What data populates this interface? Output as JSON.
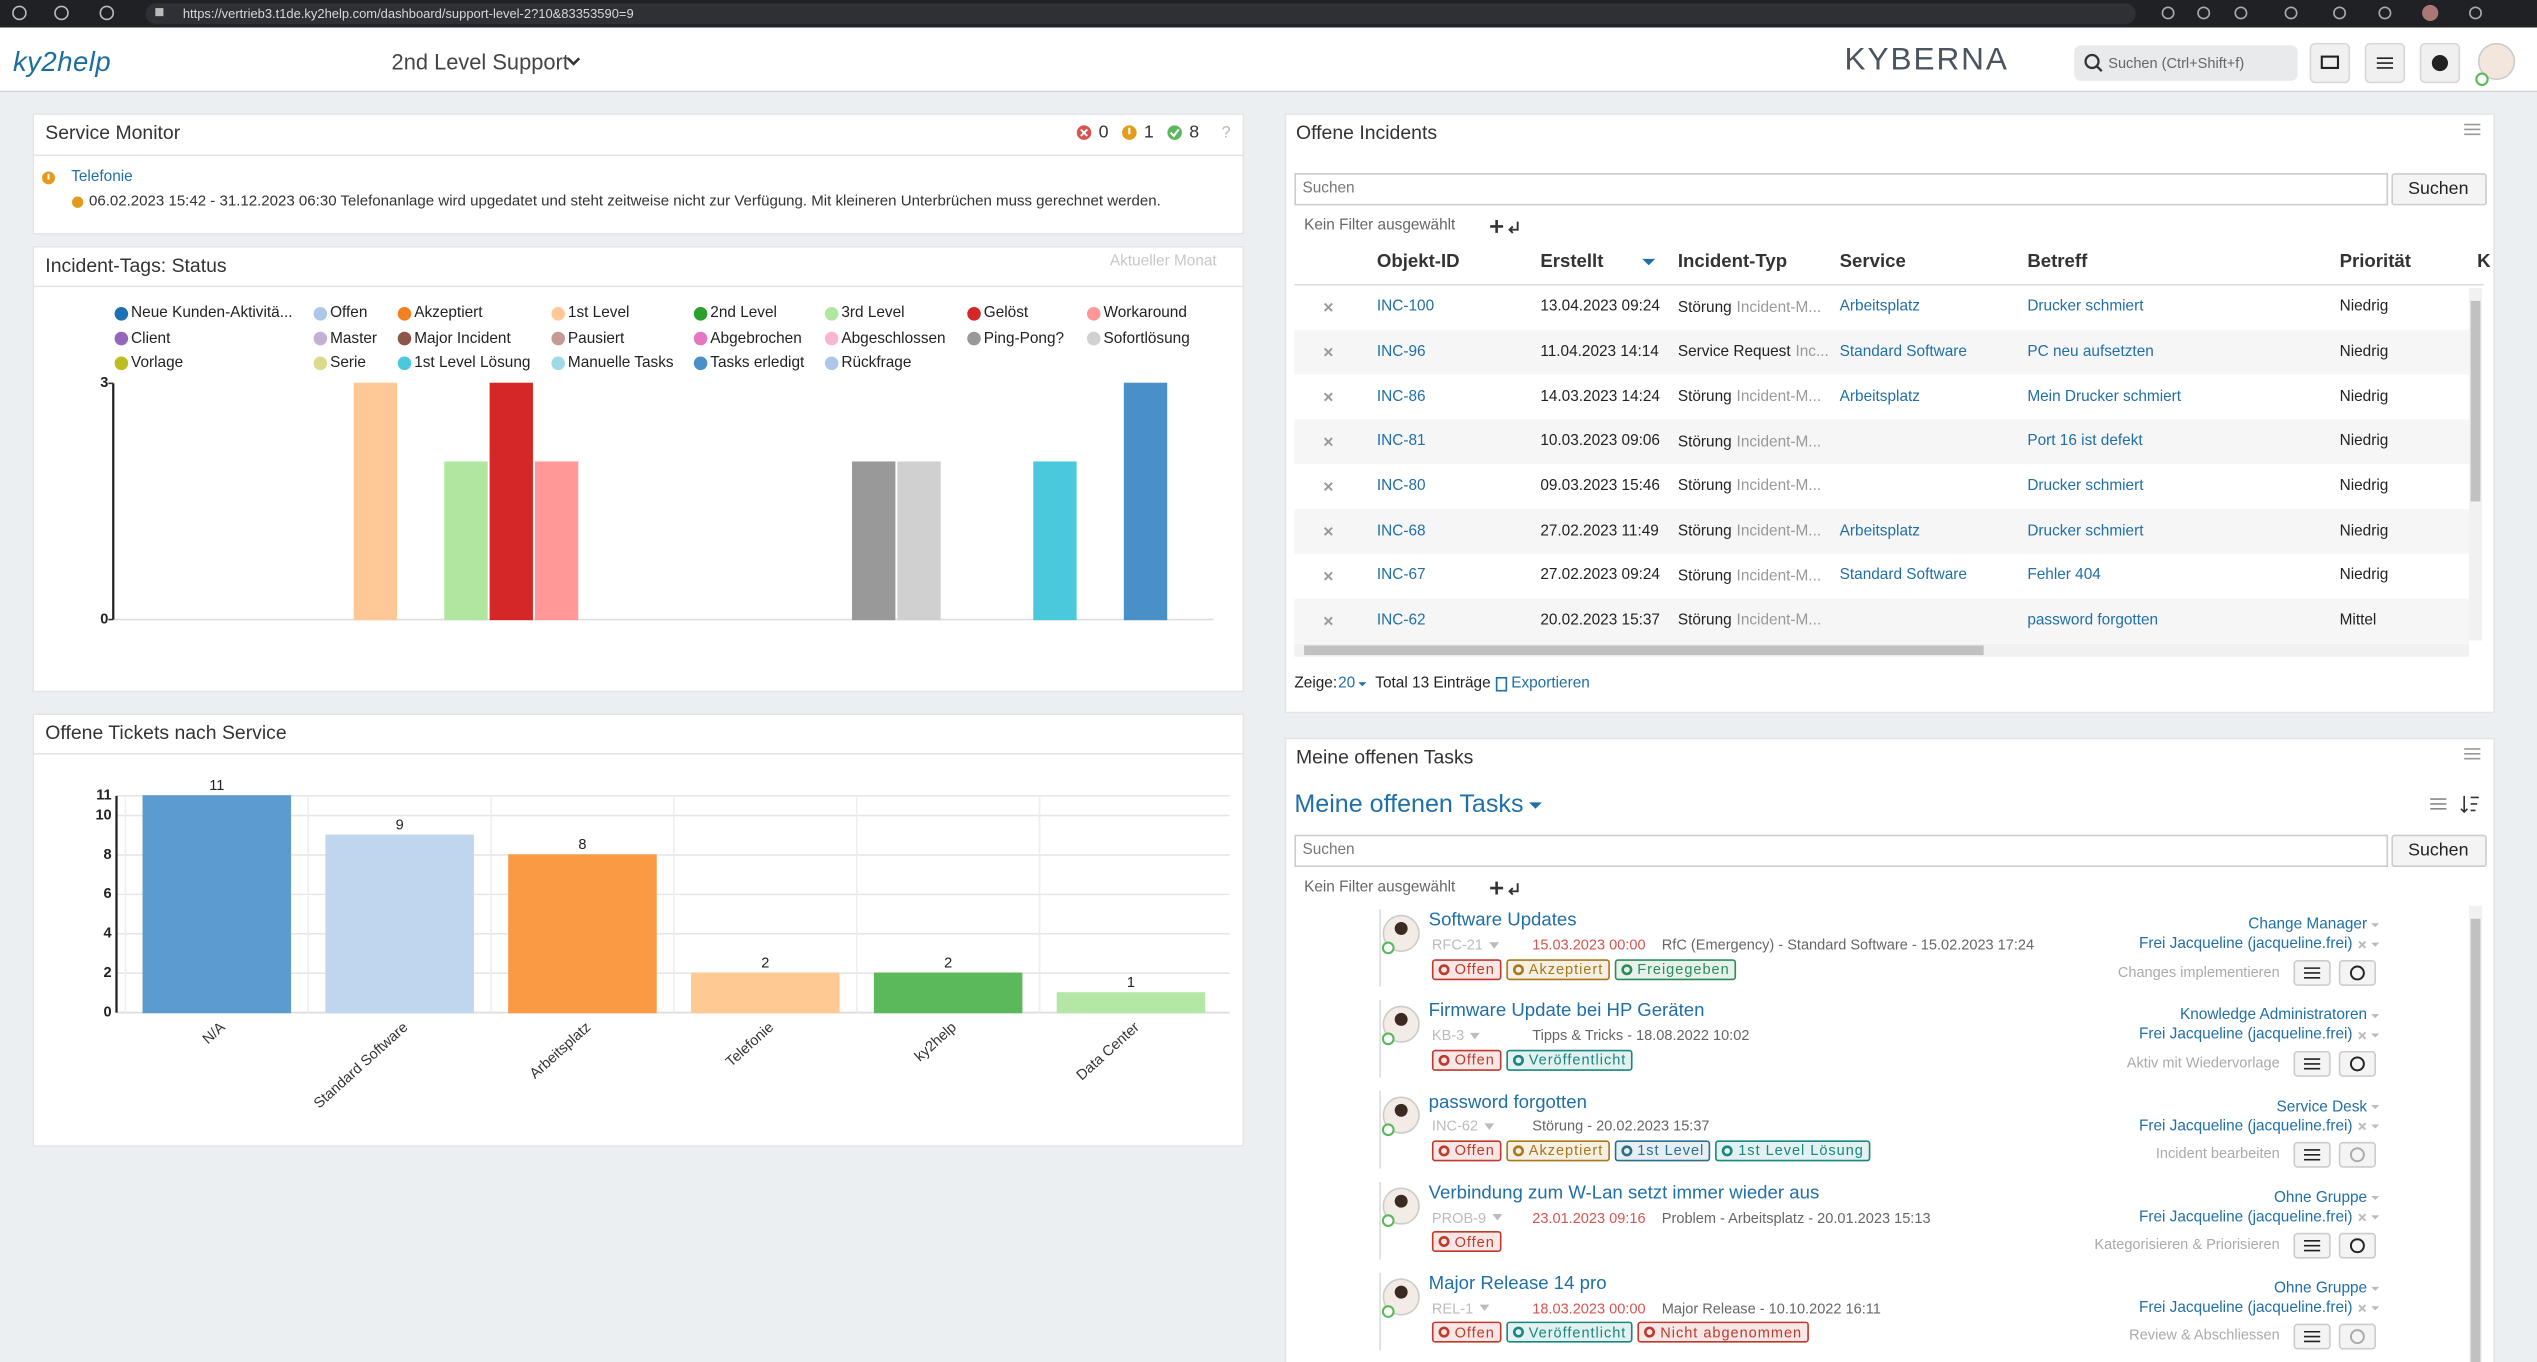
{
  "browser": {
    "url": "https://vertrieb3.t1de.ky2help.com/dashboard/support-level-2?10&83353590=9"
  },
  "header": {
    "logo": "ky2help",
    "dashboard": "2nd Level Support",
    "brand": "KYBERNA",
    "search_placeholder": "Suchen (Ctrl+Shift+f)"
  },
  "service_monitor": {
    "title": "Service Monitor",
    "errors": 0,
    "warnings": 1,
    "ok": 8,
    "help": "?",
    "items": [
      {
        "name": "Telefonie",
        "message": "06.02.2023 15:42 - 31.12.2023 06:30 Telefonanlage wird upgedatet und steht zeitweise nicht zur Verfügung. Mit kleineren Unterbrüchen muss gerechnet werden."
      }
    ]
  },
  "incident_tags": {
    "type": "bar",
    "title": "Incident-Tags: Status",
    "subtitle": "Aktueller Monat",
    "categories": [
      "Neue Kunden-Aktivitä...",
      "Offen",
      "Akzeptiert",
      "1st Level",
      "2nd Level",
      "3rd Level",
      "Gelöst",
      "Workaround",
      "Client",
      "Master",
      "Major Incident",
      "Pausiert",
      "Abgebrochen",
      "Abgeschlossen",
      "Ping-Pong?",
      "Sofortlösung",
      "Vorlage",
      "Serie",
      "1st Level Lösung",
      "Manuelle Tasks",
      "Tasks erledigt",
      "Rückfrage"
    ],
    "colors": [
      "#1f6fb4",
      "#aec7e8",
      "#f08020",
      "#ffc896",
      "#2ca02c",
      "#b0e6a0",
      "#d62728",
      "#ff9896",
      "#9467bd",
      "#c5b0d5",
      "#8c564b",
      "#c49c94",
      "#e377c2",
      "#f7b6d2",
      "#999999",
      "#d0d0d0",
      "#bcbd22",
      "#dbdb8d",
      "#4bc9dc",
      "#9edae5",
      "#4a90c8",
      "#aec7e8"
    ],
    "values": [
      0,
      0,
      0,
      3,
      0,
      2,
      3,
      2,
      0,
      0,
      0,
      0,
      0,
      0,
      2,
      2,
      0,
      0,
      2,
      0,
      3,
      0
    ],
    "ylim": [
      0,
      3
    ],
    "yticks": [
      0,
      3
    ]
  },
  "tickets_by_service": {
    "type": "bar",
    "title": "Offene Tickets nach Service",
    "categories": [
      "N/A",
      "Standard Software",
      "Arbeitsplatz",
      "Telefonie",
      "ky2help",
      "Data Center"
    ],
    "colors": [
      "#5b9bd0",
      "#c0d5ee",
      "#fa9a45",
      "#ffc994",
      "#5bb85b",
      "#b4e6a6"
    ],
    "values": [
      11,
      9,
      8,
      2,
      2,
      1
    ],
    "ylim": [
      0,
      11
    ],
    "yticks": [
      0,
      2,
      4,
      6,
      8,
      10,
      11
    ],
    "grid": true
  },
  "incidents": {
    "title": "Offene Incidents",
    "search_placeholder": "Suchen",
    "search_button": "Suchen",
    "filter": "Kein Filter ausgewählt",
    "columns": [
      "Objekt-ID",
      "Erstellt",
      "Incident-Typ",
      "Service",
      "Betreff",
      "Priorität",
      "K"
    ],
    "rows": [
      {
        "id": "INC-100",
        "created": "13.04.2023 09:24",
        "type": "Störung",
        "type_detail": "Incident-M...",
        "service": "Arbeitsplatz",
        "subject": "Drucker schmiert",
        "priority": "Niedrig"
      },
      {
        "id": "INC-96",
        "created": "11.04.2023 14:14",
        "type": "Service Request",
        "type_detail": "Inc...",
        "service": "Standard Software",
        "subject": "PC neu aufsetzten",
        "priority": "Niedrig"
      },
      {
        "id": "INC-86",
        "created": "14.03.2023 14:24",
        "type": "Störung",
        "type_detail": "Incident-M...",
        "service": "Arbeitsplatz",
        "subject": "Mein Drucker schmiert",
        "priority": "Niedrig"
      },
      {
        "id": "INC-81",
        "created": "10.03.2023 09:06",
        "type": "Störung",
        "type_detail": "Incident-M...",
        "subject": "Port 16 ist defekt",
        "priority": "Niedrig"
      },
      {
        "id": "INC-80",
        "created": "09.03.2023 15:46",
        "type": "Störung",
        "type_detail": "Incident-M...",
        "subject": "Drucker schmiert",
        "priority": "Niedrig"
      },
      {
        "id": "INC-68",
        "created": "27.02.2023 11:49",
        "type": "Störung",
        "type_detail": "Incident-M...",
        "service": "Arbeitsplatz",
        "subject": "Drucker schmiert",
        "priority": "Niedrig"
      },
      {
        "id": "INC-67",
        "created": "27.02.2023 09:24",
        "type": "Störung",
        "type_detail": "Incident-M...",
        "service": "Standard Software",
        "subject": "Fehler 404",
        "priority": "Niedrig"
      },
      {
        "id": "INC-62",
        "created": "20.02.2023 15:37",
        "type": "Störung",
        "type_detail": "Incident-M...",
        "subject": "password forgotten",
        "priority": "Mittel"
      }
    ],
    "footer": {
      "show_label": "Zeige:",
      "page_size": 20,
      "total": "Total 13 Einträge",
      "export": "Exportieren"
    }
  },
  "tasks": {
    "panel_title": "Meine offenen Tasks",
    "title": "Meine offenen Tasks",
    "search_placeholder": "Suchen",
    "search_button": "Suchen",
    "filter": "Kein Filter ausgewählt",
    "items": [
      {
        "title": "Software Updates",
        "ref": "RFC-21",
        "due": "15.03.2023 00:00",
        "info": "RfC (Emergency) - Standard Software - 15.02.2023 17:24",
        "group": "Change Manager",
        "assignee": "Frei Jacqueline (jacqueline.frei)",
        "step": "Changes implementieren",
        "tags": [
          {
            "label": "Offen",
            "color": "#c0392b"
          },
          {
            "label": "Akzeptiert",
            "color": "#a8781a"
          },
          {
            "label": "Freigegeben",
            "color": "#2e8b57"
          }
        ]
      },
      {
        "title": "Firmware Update bei HP Geräten",
        "ref": "KB-3",
        "info": "Tipps & Tricks - 18.08.2022 10:02",
        "group": "Knowledge Administratoren",
        "assignee": "Frei Jacqueline (jacqueline.frei)",
        "step": "Aktiv mit Wiedervorlage",
        "tags": [
          {
            "label": "Offen",
            "color": "#c0392b"
          },
          {
            "label": "Veröffentlicht",
            "color": "#17877f"
          }
        ]
      },
      {
        "title": "password forgotten",
        "ref": "INC-62",
        "info": "Störung - 20.02.2023 15:37",
        "group": "Service Desk",
        "assignee": "Frei Jacqueline (jacqueline.frei)",
        "step": "Incident bearbeiten",
        "tags": [
          {
            "label": "Offen",
            "color": "#c0392b"
          },
          {
            "label": "Akzeptiert",
            "color": "#a8781a"
          },
          {
            "label": "1st Level",
            "color": "#2c6e8f"
          },
          {
            "label": "1st Level Lösung",
            "color": "#17877f"
          }
        ]
      },
      {
        "title": "Verbindung zum W-Lan setzt immer wieder aus",
        "ref": "PROB-9",
        "due": "23.01.2023 09:16",
        "info": "Problem - Arbeitsplatz - 20.01.2023 15:13",
        "group": "Ohne Gruppe",
        "assignee": "Frei Jacqueline (jacqueline.frei)",
        "step": "Kategorisieren & Priorisieren",
        "tags": [
          {
            "label": "Offen",
            "color": "#c0392b"
          }
        ]
      },
      {
        "title": "Major Release 14 pro",
        "ref": "REL-1",
        "due": "18.03.2023 00:00",
        "info": "Major Release - 10.10.2022 16:11",
        "group": "Ohne Gruppe",
        "assignee": "Frei Jacqueline (jacqueline.frei)",
        "step": "Review & Abschliessen",
        "tags": [
          {
            "label": "Offen",
            "color": "#c0392b"
          },
          {
            "label": "Veröffentlicht",
            "color": "#17877f"
          },
          {
            "label": "Nicht abgenommen",
            "color": "#c0392b"
          }
        ]
      }
    ]
  }
}
